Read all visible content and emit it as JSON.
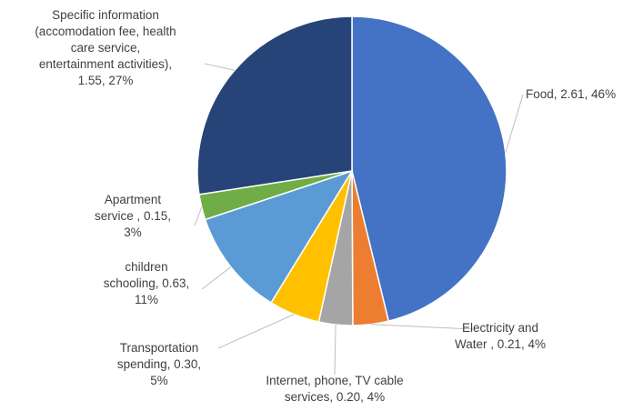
{
  "chart_data": {
    "type": "pie",
    "slices": [
      {
        "category": "Food",
        "value": 2.61,
        "percent": "46%",
        "color": "#4472C4",
        "label_lines": [
          "Food, 2.61, 46%"
        ]
      },
      {
        "category": "Electricity and Water",
        "value": 0.21,
        "percent": "4%",
        "color": "#ED7D31",
        "label_lines": [
          "Electricity and",
          "Water  , 0.21, 4%"
        ]
      },
      {
        "category": "Internet, phone, TV cable services",
        "value": 0.2,
        "percent": "4%",
        "color": "#A5A5A5",
        "label_lines": [
          "Internet, phone, TV cable",
          "services, 0.20, 4%"
        ]
      },
      {
        "category": "Transportation spending",
        "value": 0.3,
        "percent": "5%",
        "color": "#FFC000",
        "label_lines": [
          "Transportation",
          "spending, 0.30,",
          "5%"
        ]
      },
      {
        "category": "children schooling",
        "value": 0.63,
        "percent": "11%",
        "color": "#5B9BD5",
        "label_lines": [
          "children",
          "schooling, 0.63,",
          "11%"
        ]
      },
      {
        "category": "Apartment service",
        "value": 0.15,
        "percent": "3%",
        "color": "#70AD47",
        "label_lines": [
          "Apartment",
          "service , 0.15,",
          "3%"
        ]
      },
      {
        "category": "Specific information (accomodation fee, health care service, entertainment activities)",
        "value": 1.55,
        "percent": "27%",
        "color": "#264478",
        "label_lines": [
          "Specific information",
          "(accomodation fee, health",
          "care service,",
          "entertainment activities),",
          "1.55, 27%"
        ]
      }
    ]
  }
}
